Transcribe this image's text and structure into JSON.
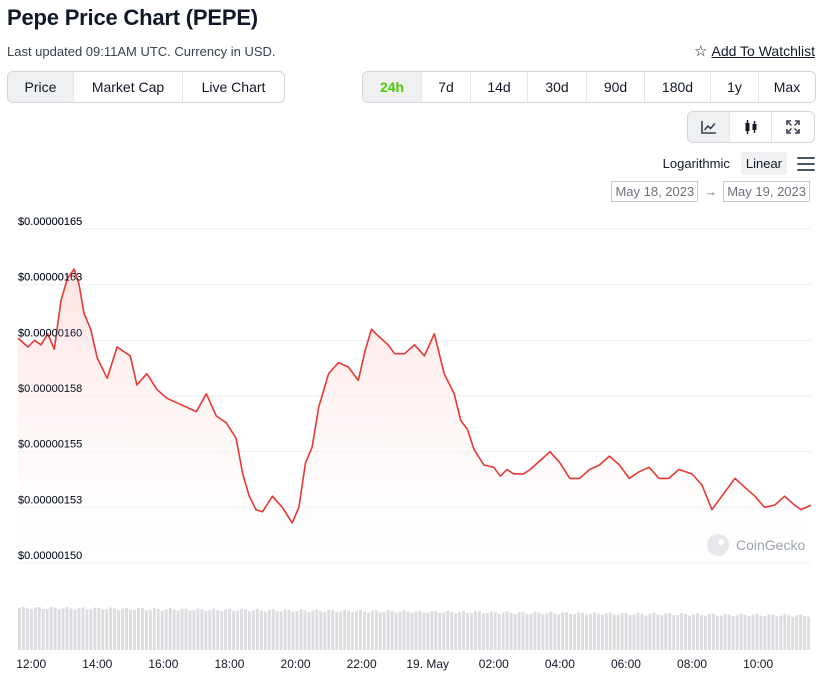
{
  "header": {
    "title": "Pepe Price Chart (PEPE)",
    "subtitle": "Last updated 09:11AM UTC. Currency in USD.",
    "watchlist_label": "Add To Watchlist"
  },
  "tabs": [
    {
      "label": "Price",
      "active": true
    },
    {
      "label": "Market Cap",
      "active": false
    },
    {
      "label": "Live Chart",
      "active": false
    }
  ],
  "ranges": [
    {
      "label": "24h",
      "active": true
    },
    {
      "label": "7d",
      "active": false
    },
    {
      "label": "14d",
      "active": false
    },
    {
      "label": "30d",
      "active": false
    },
    {
      "label": "90d",
      "active": false
    },
    {
      "label": "180d",
      "active": false
    },
    {
      "label": "1y",
      "active": false
    },
    {
      "label": "Max",
      "active": false
    }
  ],
  "view_icons": [
    "line-chart-icon",
    "candlestick-icon",
    "fullscreen-icon"
  ],
  "scale": {
    "log_label": "Logarithmic",
    "linear_label": "Linear",
    "active": "Linear"
  },
  "date_range": {
    "from": "May 18, 2023",
    "arrow": "→",
    "to": "May 19, 2023"
  },
  "watermark": "CoinGecko",
  "colors": {
    "line": "#e53935",
    "fill_top": "#fde2e0",
    "active_green": "#4bcc00",
    "volume": "#dcdde0"
  },
  "chart_data": {
    "type": "area",
    "y_tick_labels": [
      "$0.00000165",
      "$0.00000163",
      "$0.00000160",
      "$0.00000158",
      "$0.00000155",
      "$0.00000153",
      "$0.00000150"
    ],
    "y_ticks": [
      1.65,
      1.625,
      1.6,
      1.575,
      1.55,
      1.525,
      1.5
    ],
    "y_unit_note": "values in units of 1e-6 USD",
    "ylim": [
      1.5,
      1.65
    ],
    "x_tick_labels": [
      "12:00",
      "14:00",
      "16:00",
      "18:00",
      "20:00",
      "22:00",
      "19. May",
      "02:00",
      "04:00",
      "06:00",
      "08:00",
      "10:00"
    ],
    "x_ticks": [
      12,
      14,
      16,
      18,
      20,
      22,
      24,
      26,
      28,
      30,
      32,
      34
    ],
    "x_range": [
      11.6,
      35.6
    ],
    "x": [
      11.6,
      11.9,
      12.1,
      12.3,
      12.5,
      12.7,
      12.9,
      13.1,
      13.3,
      13.45,
      13.6,
      13.8,
      14.0,
      14.3,
      14.6,
      15.0,
      15.2,
      15.5,
      15.8,
      16.1,
      16.4,
      16.7,
      17.0,
      17.3,
      17.6,
      17.9,
      18.2,
      18.4,
      18.6,
      18.8,
      19.0,
      19.3,
      19.6,
      19.9,
      20.1,
      20.3,
      20.5,
      20.7,
      21.0,
      21.3,
      21.6,
      21.9,
      22.1,
      22.3,
      22.5,
      22.8,
      23.0,
      23.3,
      23.6,
      23.9,
      24.2,
      24.5,
      24.8,
      25.0,
      25.2,
      25.4,
      25.7,
      26.0,
      26.2,
      26.4,
      26.6,
      26.9,
      27.1,
      27.4,
      27.7,
      28.0,
      28.3,
      28.6,
      28.9,
      29.2,
      29.5,
      29.8,
      30.1,
      30.4,
      30.7,
      31.0,
      31.3,
      31.6,
      32.0,
      32.3,
      32.6,
      33.0,
      33.3,
      33.6,
      33.9,
      34.2,
      34.5,
      34.8,
      35.1,
      35.3,
      35.6
    ],
    "y": [
      1.601,
      1.597,
      1.6,
      1.598,
      1.603,
      1.596,
      1.618,
      1.628,
      1.632,
      1.625,
      1.612,
      1.605,
      1.592,
      1.583,
      1.597,
      1.593,
      1.58,
      1.585,
      1.578,
      1.574,
      1.572,
      1.57,
      1.568,
      1.576,
      1.566,
      1.563,
      1.556,
      1.54,
      1.53,
      1.524,
      1.523,
      1.53,
      1.525,
      1.518,
      1.525,
      1.545,
      1.552,
      1.57,
      1.585,
      1.59,
      1.588,
      1.582,
      1.595,
      1.605,
      1.602,
      1.598,
      1.594,
      1.594,
      1.598,
      1.593,
      1.603,
      1.585,
      1.576,
      1.564,
      1.56,
      1.551,
      1.544,
      1.543,
      1.539,
      1.542,
      1.54,
      1.54,
      1.542,
      1.546,
      1.55,
      1.545,
      1.538,
      1.538,
      1.542,
      1.544,
      1.548,
      1.544,
      1.538,
      1.541,
      1.543,
      1.538,
      1.538,
      1.542,
      1.54,
      1.535,
      1.524,
      1.532,
      1.538,
      1.534,
      1.53,
      1.525,
      1.526,
      1.53,
      1.526,
      1.524,
      1.526
    ],
    "volume_note": "relative volume bars (0-1)",
    "grid": true,
    "legend": "none"
  }
}
